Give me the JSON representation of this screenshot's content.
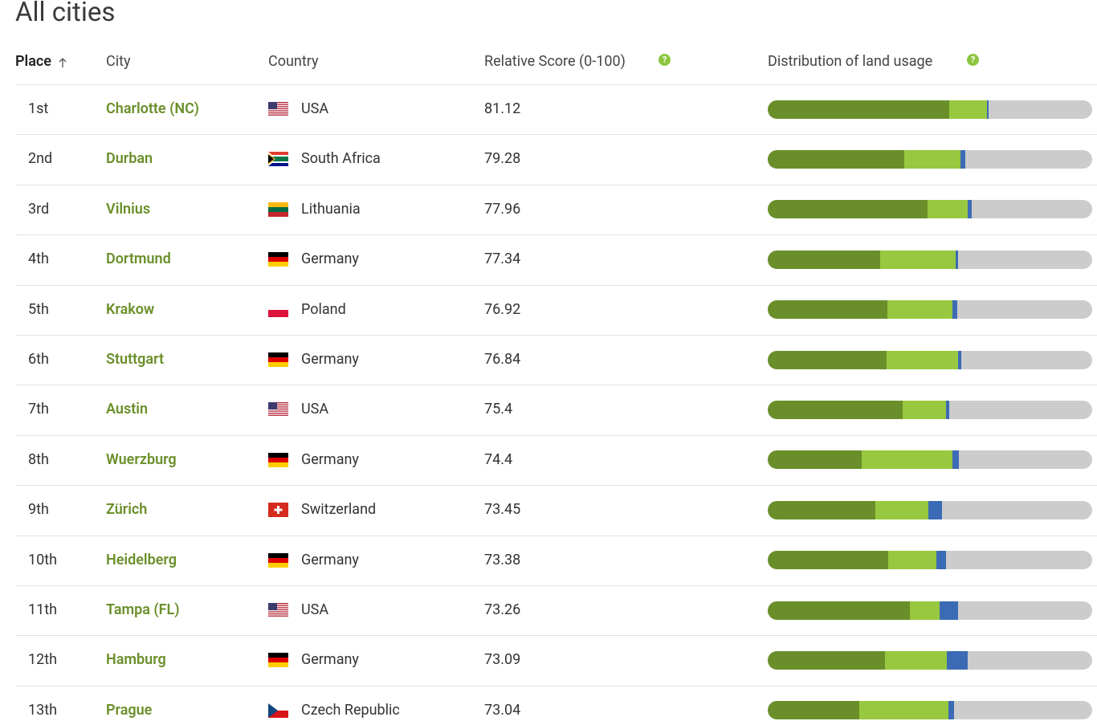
{
  "title": "All cities",
  "headers": {
    "place": "Place",
    "city": "City",
    "country": "Country",
    "score": "Relative Score (0-100)",
    "distribution": "Distribution of land usage",
    "help_icon": "?"
  },
  "distribution_colors": [
    "#6a8f2a",
    "#97c83f",
    "#3c6bb5"
  ],
  "rows": [
    {
      "place": "1st",
      "city": "Charlotte (NC)",
      "country": "USA",
      "score": 81.12,
      "land": [
        56,
        11.6,
        0.5
      ]
    },
    {
      "place": "2nd",
      "city": "Durban",
      "country": "South Africa",
      "score": 79.28,
      "land": [
        42,
        17.3,
        1.5
      ]
    },
    {
      "place": "3rd",
      "city": "Vilnius",
      "country": "Lithuania",
      "score": 77.96,
      "land": [
        49.3,
        12.4,
        1.2
      ]
    },
    {
      "place": "4th",
      "city": "Dortmund",
      "country": "Germany",
      "score": 77.34,
      "land": [
        34.7,
        23.3,
        0.7
      ]
    },
    {
      "place": "5th",
      "city": "Krakow",
      "country": "Poland",
      "score": 76.92,
      "land": [
        36.9,
        20,
        1.5
      ]
    },
    {
      "place": "6th",
      "city": "Stuttgart",
      "country": "Germany",
      "score": 76.84,
      "land": [
        36.6,
        22,
        1
      ]
    },
    {
      "place": "7th",
      "city": "Austin",
      "country": "USA",
      "score": 75.4,
      "land": [
        41.6,
        13.4,
        1
      ]
    },
    {
      "place": "8th",
      "city": "Wuerzburg",
      "country": "Germany",
      "score": 74.4,
      "land": [
        29,
        28,
        2
      ]
    },
    {
      "place": "9th",
      "city": "Zürich",
      "country": "Switzerland",
      "score": 73.45,
      "land": [
        33.2,
        16.3,
        4.2
      ]
    },
    {
      "place": "10th",
      "city": "Heidelberg",
      "country": "Germany",
      "score": 73.38,
      "land": [
        37.1,
        14.9,
        3
      ]
    },
    {
      "place": "11th",
      "city": "Tampa (FL)",
      "country": "USA",
      "score": 73.26,
      "land": [
        43.8,
        9.2,
        5.7
      ]
    },
    {
      "place": "12th",
      "city": "Hamburg",
      "country": "Germany",
      "score": 73.09,
      "land": [
        36.1,
        19.1,
        6.4
      ]
    },
    {
      "place": "13th",
      "city": "Prague",
      "country": "Czech Republic",
      "score": 73.04,
      "land": [
        28.2,
        27.5,
        1.7
      ]
    }
  ]
}
